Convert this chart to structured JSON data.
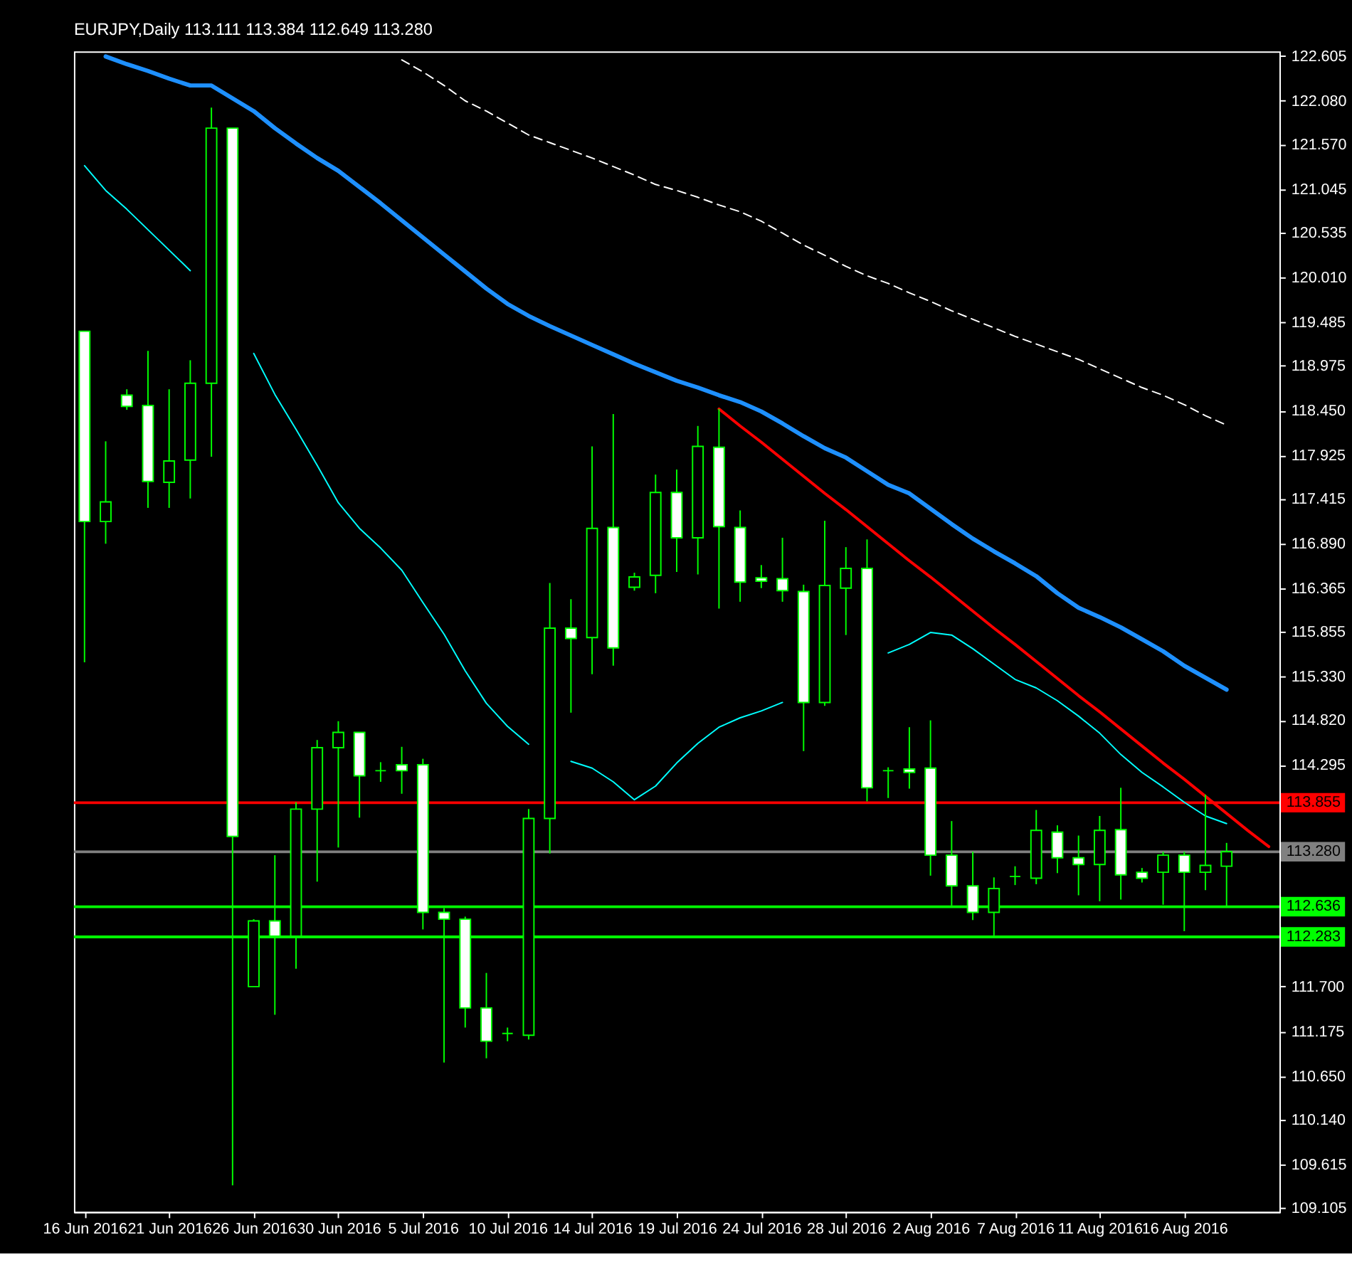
{
  "chart_data": {
    "type": "candlestick",
    "title": "EURJPY,Daily 113.111 113.384 112.649 113.280",
    "categories": [
      "16 Jun 2016",
      null,
      null,
      null,
      "21 Jun 2016",
      null,
      null,
      null,
      "26 Jun 2016",
      null,
      null,
      null,
      "30 Jun 2016",
      null,
      null,
      null,
      "5 Jul 2016",
      null,
      null,
      null,
      "10 Jul 2016",
      null,
      null,
      null,
      "14 Jul 2016",
      null,
      null,
      null,
      "19 Jul 2016",
      null,
      null,
      null,
      "24 Jul 2016",
      null,
      null,
      null,
      "28 Jul 2016",
      null,
      null,
      null,
      "2 Aug 2016",
      null,
      null,
      null,
      "7 Aug 2016",
      null,
      null,
      null,
      "11 Aug 2016",
      null,
      null,
      null,
      "16 Aug 2016",
      null,
      null,
      null,
      null
    ],
    "ohlc": [
      [
        119.38,
        119.38,
        115.5,
        117.15
      ],
      [
        117.15,
        118.09,
        116.89,
        117.38
      ],
      [
        118.63,
        118.7,
        118.46,
        118.5
      ],
      [
        118.51,
        119.15,
        117.31,
        117.62
      ],
      [
        117.61,
        118.7,
        117.31,
        117.86
      ],
      [
        117.87,
        119.04,
        117.42,
        118.77
      ],
      [
        118.77,
        122.0,
        117.91,
        121.76
      ],
      [
        121.76,
        121.76,
        109.37,
        113.46
      ],
      [
        111.7,
        112.49,
        111.7,
        112.47
      ],
      [
        112.47,
        113.24,
        111.37,
        112.29
      ],
      [
        112.29,
        113.86,
        111.91,
        113.78
      ],
      [
        113.78,
        114.59,
        112.93,
        114.5
      ],
      [
        114.5,
        114.81,
        113.33,
        114.68
      ],
      [
        114.68,
        114.68,
        113.68,
        114.17
      ],
      [
        114.23,
        114.33,
        114.1,
        114.23
      ],
      [
        114.3,
        114.51,
        113.96,
        114.23
      ],
      [
        114.3,
        114.37,
        112.37,
        112.57
      ],
      [
        112.57,
        112.62,
        110.81,
        112.49
      ],
      [
        112.49,
        112.52,
        111.22,
        111.45
      ],
      [
        111.45,
        111.86,
        110.86,
        111.06
      ],
      [
        111.15,
        111.22,
        111.06,
        111.15
      ],
      [
        111.13,
        113.78,
        111.08,
        113.67
      ],
      [
        113.67,
        116.43,
        113.26,
        115.9
      ],
      [
        115.9,
        116.24,
        114.91,
        115.78
      ],
      [
        115.79,
        118.03,
        115.36,
        117.07
      ],
      [
        117.08,
        118.41,
        115.46,
        115.67
      ],
      [
        116.38,
        116.55,
        116.34,
        116.5
      ],
      [
        116.52,
        117.7,
        116.31,
        117.49
      ],
      [
        117.49,
        117.76,
        116.56,
        116.96
      ],
      [
        116.96,
        118.27,
        116.53,
        118.03
      ],
      [
        118.02,
        118.47,
        116.13,
        117.09
      ],
      [
        117.08,
        117.28,
        116.21,
        116.44
      ],
      [
        116.49,
        116.64,
        116.37,
        116.45
      ],
      [
        116.48,
        116.96,
        116.21,
        116.34
      ],
      [
        116.33,
        116.41,
        114.46,
        115.03
      ],
      [
        115.03,
        117.16,
        114.99,
        116.4
      ],
      [
        116.37,
        116.85,
        115.82,
        116.6
      ],
      [
        116.6,
        116.94,
        113.87,
        114.03
      ],
      [
        114.23,
        114.27,
        113.91,
        114.23
      ],
      [
        114.25,
        114.74,
        114.02,
        114.21
      ],
      [
        114.26,
        114.82,
        113.0,
        113.24
      ],
      [
        113.24,
        113.64,
        112.65,
        112.88
      ],
      [
        112.88,
        113.28,
        112.48,
        112.57
      ],
      [
        112.57,
        112.98,
        112.3,
        112.85
      ],
      [
        112.99,
        113.11,
        112.89,
        112.99
      ],
      [
        112.97,
        113.77,
        112.9,
        113.53
      ],
      [
        113.51,
        113.59,
        113.03,
        113.21
      ],
      [
        113.21,
        113.47,
        112.77,
        113.13
      ],
      [
        113.13,
        113.7,
        112.7,
        113.53
      ],
      [
        113.54,
        114.03,
        112.72,
        113.01
      ],
      [
        113.04,
        113.09,
        112.92,
        112.97
      ],
      [
        113.04,
        113.28,
        112.66,
        113.24
      ],
      [
        113.24,
        113.28,
        112.35,
        113.04
      ],
      [
        113.04,
        113.95,
        112.83,
        113.12
      ],
      [
        113.111,
        113.384,
        112.649,
        113.28
      ],
      null,
      null
    ],
    "color": "#00ff00",
    "colors": [
      "#ffffff",
      "#000000",
      "#ffffff",
      "#ffffff",
      "#000000",
      "#000000",
      "#000000",
      "#ffffff",
      "#000000",
      "#ffffff",
      "#000000",
      "#000000",
      "#000000",
      "#ffffff",
      "#00ff00",
      "#ffffff",
      "#ffffff",
      "#ffffff",
      "#ffffff",
      "#ffffff",
      "#00ff00",
      "#000000",
      "#000000",
      "#ffffff",
      "#000000",
      "#ffffff",
      "#000000",
      "#000000",
      "#ffffff",
      "#000000",
      "#ffffff",
      "#ffffff",
      "#ffffff",
      "#ffffff",
      "#ffffff",
      "#000000",
      "#000000",
      "#ffffff",
      "#00ff00",
      "#ffffff",
      "#ffffff",
      "#ffffff",
      "#ffffff",
      "#000000",
      "#00ff00",
      "#000000",
      "#ffffff",
      "#ffffff",
      "#000000",
      "#ffffff",
      "#ffffff",
      "#000000",
      "#ffffff",
      "#000000",
      "#000000",
      null,
      null
    ],
    "series": [
      {
        "type": "line",
        "color": "#00ffff",
        "values": [
          121.32,
          121.03,
          120.81,
          120.57,
          120.33,
          120.09,
          null,
          null,
          119.12,
          118.64,
          118.23,
          117.81,
          117.37,
          117.07,
          116.84,
          116.58,
          116.2,
          115.83,
          115.4,
          115.02,
          114.75,
          114.54,
          null,
          114.34,
          114.26,
          114.1,
          113.89,
          114.05,
          114.32,
          114.55,
          114.74,
          114.85,
          114.93,
          115.03,
          null,
          null,
          null,
          null,
          115.61,
          115.71,
          115.85,
          115.82,
          115.66,
          115.48,
          115.3,
          115.2,
          115.05,
          114.87,
          114.67,
          114.42,
          114.21,
          114.04,
          113.86,
          113.7,
          113.61,
          null,
          null
        ]
      },
      {
        "type": "line",
        "color": "#1e90ff",
        "values": [
          null,
          122.6,
          122.51,
          122.43,
          122.34,
          122.26,
          122.26,
          122.11,
          121.96,
          121.76,
          121.58,
          121.41,
          121.26,
          121.07,
          120.88,
          120.68,
          120.48,
          120.28,
          120.08,
          119.88,
          119.7,
          119.56,
          119.44,
          119.33,
          119.22,
          119.11,
          119.0,
          118.9,
          118.8,
          118.72,
          118.63,
          118.55,
          118.44,
          118.3,
          118.15,
          118.01,
          117.9,
          117.74,
          117.58,
          117.48,
          117.3,
          117.12,
          116.95,
          116.8,
          116.66,
          116.51,
          116.31,
          116.14,
          116.03,
          115.91,
          115.77,
          115.63,
          115.46,
          115.32,
          115.18,
          null,
          null
        ]
      },
      {
        "type": "line",
        "color": "#ffffff",
        "line_style": "dashed",
        "values": [
          null,
          null,
          null,
          null,
          null,
          null,
          null,
          null,
          null,
          null,
          null,
          null,
          null,
          null,
          null,
          122.56,
          122.42,
          122.26,
          122.08,
          121.96,
          121.82,
          121.68,
          121.59,
          121.5,
          121.41,
          121.31,
          121.21,
          121.1,
          121.03,
          120.95,
          120.86,
          120.78,
          120.67,
          120.53,
          120.39,
          120.27,
          120.14,
          120.03,
          119.94,
          119.83,
          119.73,
          119.62,
          119.52,
          119.42,
          119.32,
          119.23,
          119.14,
          119.05,
          118.94,
          118.83,
          118.72,
          118.63,
          118.52,
          118.39,
          118.28,
          null,
          null
        ]
      },
      {
        "type": "line",
        "color": "#ff0000",
        "values": [
          null,
          null,
          null,
          null,
          null,
          null,
          null,
          null,
          null,
          null,
          null,
          null,
          null,
          null,
          null,
          null,
          null,
          null,
          null,
          null,
          null,
          null,
          null,
          null,
          null,
          null,
          null,
          null,
          null,
          null,
          118.47,
          118.27,
          118.08,
          117.88,
          117.68,
          117.48,
          117.29,
          117.09,
          116.89,
          116.69,
          116.5,
          116.3,
          116.1,
          115.9,
          115.71,
          115.51,
          115.31,
          115.11,
          114.92,
          114.72,
          114.52,
          114.32,
          114.13,
          113.93,
          113.73,
          113.53,
          113.34
        ]
      }
    ],
    "ref_lines": [
      {
        "axis": "y",
        "value": 113.855,
        "label": "113.855",
        "color": "#ff0000"
      },
      {
        "axis": "y",
        "value": 113.28,
        "label": "113.280",
        "color": "#808080"
      },
      {
        "axis": "y",
        "value": 112.636,
        "label": "112.636",
        "color": "#00ff00"
      },
      {
        "axis": "y",
        "value": 112.283,
        "label": "112.283",
        "color": "#00ff00"
      }
    ],
    "ylim": [
      109.06,
      122.66
    ],
    "yticks": [
      122.605,
      {
        "value": 122.08,
        "label": "122.080"
      },
      {
        "value": 121.57,
        "label": "121.570"
      },
      121.045,
      120.535,
      {
        "value": 120.01,
        "label": "120.010"
      },
      119.485,
      118.975,
      {
        "value": 118.45,
        "label": "118.450"
      },
      117.925,
      117.415,
      {
        "value": 116.89,
        "label": "116.890"
      },
      116.365,
      115.855,
      {
        "value": 115.33,
        "label": "115.330"
      },
      {
        "value": 114.82,
        "label": "114.820"
      },
      114.295,
      {
        "value": 113.77,
        "label": null
      },
      {
        "value": 112.735,
        "label": null
      },
      {
        "value": 112.21,
        "label": null
      },
      {
        "value": 111.7,
        "label": "111.700"
      },
      111.175,
      {
        "value": 110.65,
        "label": "110.650"
      },
      {
        "value": 110.14,
        "label": "110.140"
      },
      109.615,
      109.105
    ],
    "grid": false
  }
}
